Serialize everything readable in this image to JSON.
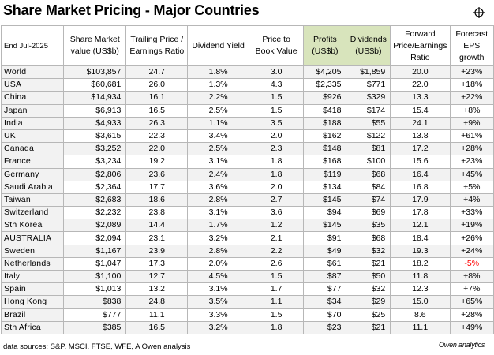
{
  "title": "Share Market Pricing - Major Countries",
  "icons": {
    "crosshair": "crosshair-icon"
  },
  "colors": {
    "header_green": "#d8e4bc",
    "negative": "#ff0000",
    "row_shade": "#f2f2f2"
  },
  "chart_data": {
    "type": "table",
    "columns": [
      "End Jul-2025",
      "Share Market value (US$b)",
      "Trailing Price / Earnings Ratio",
      "Dividend Yield",
      "Price to Book Value",
      "Profits (US$b)",
      "Dividends (US$b)",
      "Forward Price/Earnings Ratio",
      "Forecast EPS growth"
    ],
    "rows": [
      [
        "World",
        "$103,857",
        "24.7",
        "1.8%",
        "3.0",
        "$4,205",
        "$1,859",
        "20.0",
        "+23%"
      ],
      [
        "USA",
        "$60,681",
        "26.0",
        "1.3%",
        "4.3",
        "$2,335",
        "$771",
        "22.0",
        "+18%"
      ],
      [
        "China",
        "$14,934",
        "16.1",
        "2.2%",
        "1.5",
        "$926",
        "$329",
        "13.3",
        "+22%"
      ],
      [
        "Japan",
        "$6,913",
        "16.5",
        "2.5%",
        "1.5",
        "$418",
        "$174",
        "15.4",
        "+8%"
      ],
      [
        "India",
        "$4,933",
        "26.3",
        "1.1%",
        "3.5",
        "$188",
        "$55",
        "24.1",
        "+9%"
      ],
      [
        "UK",
        "$3,615",
        "22.3",
        "3.4%",
        "2.0",
        "$162",
        "$122",
        "13.8",
        "+61%"
      ],
      [
        "Canada",
        "$3,252",
        "22.0",
        "2.5%",
        "2.3",
        "$148",
        "$81",
        "17.2",
        "+28%"
      ],
      [
        "France",
        "$3,234",
        "19.2",
        "3.1%",
        "1.8",
        "$168",
        "$100",
        "15.6",
        "+23%"
      ],
      [
        "Germany",
        "$2,806",
        "23.6",
        "2.4%",
        "1.8",
        "$119",
        "$68",
        "16.4",
        "+45%"
      ],
      [
        "Saudi Arabia",
        "$2,364",
        "17.7",
        "3.6%",
        "2.0",
        "$134",
        "$84",
        "16.8",
        "+5%"
      ],
      [
        "Taiwan",
        "$2,683",
        "18.6",
        "2.8%",
        "2.7",
        "$145",
        "$74",
        "17.9",
        "+4%"
      ],
      [
        "Switzerland",
        "$2,232",
        "23.8",
        "3.1%",
        "3.6",
        "$94",
        "$69",
        "17.8",
        "+33%"
      ],
      [
        "Sth Korea",
        "$2,089",
        "14.4",
        "1.7%",
        "1.2",
        "$145",
        "$35",
        "12.1",
        "+19%"
      ],
      [
        "AUSTRALIA",
        "$2,094",
        "23.1",
        "3.2%",
        "2.1",
        "$91",
        "$68",
        "18.4",
        "+26%"
      ],
      [
        "Sweden",
        "$1,167",
        "23.9",
        "2.8%",
        "2.2",
        "$49",
        "$32",
        "19.3",
        "+24%"
      ],
      [
        "Netherlands",
        "$1,047",
        "17.3",
        "2.0%",
        "2.6",
        "$61",
        "$21",
        "18.2",
        "-5%"
      ],
      [
        "Italy",
        "$1,100",
        "12.7",
        "4.5%",
        "1.5",
        "$87",
        "$50",
        "11.8",
        "+8%"
      ],
      [
        "Spain",
        "$1,013",
        "13.2",
        "3.1%",
        "1.7",
        "$77",
        "$32",
        "12.3",
        "+7%"
      ],
      [
        "Hong Kong",
        "$838",
        "24.8",
        "3.5%",
        "1.1",
        "$34",
        "$29",
        "15.0",
        "+65%"
      ],
      [
        "Brazil",
        "$777",
        "11.1",
        "3.3%",
        "1.5",
        "$70",
        "$25",
        "8.6",
        "+28%"
      ],
      [
        "Sth Africa",
        "$385",
        "16.5",
        "3.2%",
        "1.8",
        "$23",
        "$21",
        "11.1",
        "+49%"
      ]
    ]
  },
  "footer": {
    "sources": "data sources: S&P, MSCI, FTSE, WFE, A Owen analysis",
    "logo": "Owen analytics"
  }
}
